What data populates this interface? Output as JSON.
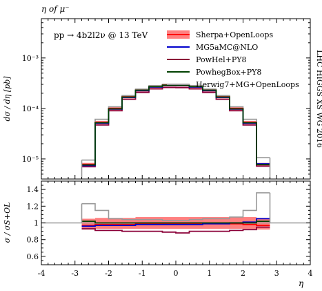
{
  "header": {
    "title": "η of μ⁻"
  },
  "side_label": "LHC HIGGS XS WG 2016",
  "process_label": "pp → 4b2l2ν @ 13 TeV",
  "chart_data": [
    {
      "type": "step",
      "panel": "main",
      "ylabel": "dσ / dη [pb]",
      "yscale": "log",
      "ylim": [
        4e-06,
        0.006
      ],
      "xlim": [
        -4,
        4
      ],
      "yticks": [
        {
          "v": 1e-05,
          "label": "10⁻⁵"
        },
        {
          "v": 0.0001,
          "label": "10⁻⁴"
        },
        {
          "v": 0.001,
          "label": "10⁻³"
        }
      ],
      "bin_edges": [
        -2.8,
        -2.4,
        -2.0,
        -1.6,
        -1.2,
        -0.8,
        -0.4,
        0.0,
        0.4,
        0.8,
        1.2,
        1.6,
        2.0,
        2.4,
        2.8
      ],
      "series": [
        {
          "name": "Sherpa+OpenLoops",
          "color": "#ff0000",
          "band_color": "#ff8080",
          "band_rel": 0.07,
          "values": [
            7.8e-06,
            5.3e-05,
            0.0001,
            0.00017,
            0.00023,
            0.00027,
            0.00029,
            0.00029,
            0.00027,
            0.00023,
            0.00017,
            0.0001,
            5.3e-05,
            7.8e-06
          ]
        },
        {
          "name": "MG5aMC@NLO",
          "color": "#0000cc",
          "values": [
            7.4e-06,
            5.1e-05,
            9.7e-05,
            0.000165,
            0.000225,
            0.000265,
            0.000285,
            0.000285,
            0.000265,
            0.000225,
            0.000165,
            9.7e-05,
            5.1e-05,
            8e-06
          ]
        },
        {
          "name": "PowHel+PY8",
          "color": "#8b0038",
          "values": [
            7e-06,
            4.7e-05,
            9e-05,
            0.000152,
            0.000208,
            0.000244,
            0.00026,
            0.000258,
            0.000244,
            0.000208,
            0.000152,
            9e-05,
            4.7e-05,
            7.2e-06
          ]
        },
        {
          "name": "PowhegBox+PY8",
          "color": "#004000",
          "values": [
            7.6e-06,
            5.2e-05,
            9.8e-05,
            0.000168,
            0.00023,
            0.00027,
            0.000288,
            0.000288,
            0.00027,
            0.00023,
            0.000168,
            9.8e-05,
            5.2e-05,
            7.7e-06
          ]
        },
        {
          "name": "Herwig7+MG+OpenLoops",
          "color": "#999999",
          "values": [
            9.5e-06,
            6.1e-05,
            0.000108,
            0.00018,
            0.000242,
            0.000283,
            0.0003,
            0.0003,
            0.000283,
            0.000242,
            0.00018,
            0.000108,
            6.1e-05,
            1.06e-05
          ]
        }
      ]
    },
    {
      "type": "step",
      "panel": "ratio",
      "ylabel": "σ / σS+OL",
      "xlabel": "η",
      "ylim": [
        0.5,
        1.5
      ],
      "xlim": [
        -4,
        4
      ],
      "xticks": [
        -4,
        -3,
        -2,
        -1,
        0,
        1,
        2,
        3,
        4
      ],
      "yticks": [
        0.6,
        0.8,
        1,
        1.2,
        1.4
      ],
      "bin_edges": [
        -2.8,
        -2.4,
        -2.0,
        -1.6,
        -1.2,
        -0.8,
        -0.4,
        0.0,
        0.4,
        0.8,
        1.2,
        1.6,
        2.0,
        2.4,
        2.8
      ],
      "reference": 1.0,
      "series": [
        {
          "name": "Sherpa+OpenLoops",
          "color": "#ff0000",
          "band_color": "#ff8080",
          "values": [
            0.97,
            0.98,
            0.98,
            0.98,
            0.99,
            0.99,
            0.99,
            0.99,
            0.99,
            0.99,
            0.99,
            0.99,
            0.98,
            0.97
          ],
          "band_low": [
            0.92,
            0.93,
            0.93,
            0.93,
            0.93,
            0.93,
            0.93,
            0.93,
            0.93,
            0.93,
            0.93,
            0.93,
            0.93,
            0.92
          ],
          "band_high": [
            1.05,
            1.06,
            1.06,
            1.06,
            1.07,
            1.07,
            1.07,
            1.07,
            1.07,
            1.07,
            1.07,
            1.07,
            1.07,
            1.06
          ]
        },
        {
          "name": "MG5aMC@NLO",
          "color": "#0000cc",
          "values": [
            0.96,
            0.97,
            0.97,
            0.97,
            0.98,
            0.98,
            0.98,
            0.98,
            0.98,
            0.99,
            0.99,
            1.0,
            1.01,
            1.05
          ]
        },
        {
          "name": "PowHel+PY8",
          "color": "#8b0038",
          "values": [
            0.93,
            0.91,
            0.91,
            0.9,
            0.9,
            0.9,
            0.89,
            0.88,
            0.9,
            0.9,
            0.9,
            0.91,
            0.92,
            0.95
          ]
        },
        {
          "name": "PowhegBox+PY8",
          "color": "#004000",
          "values": [
            1.02,
            1.0,
            1.0,
            1.0,
            1.0,
            1.0,
            1.0,
            1.0,
            1.0,
            1.0,
            1.0,
            1.0,
            1.0,
            1.02
          ]
        },
        {
          "name": "Herwig7+MG+OpenLoops",
          "color": "#999999",
          "values": [
            1.23,
            1.15,
            1.05,
            1.04,
            1.04,
            1.04,
            1.03,
            1.03,
            1.04,
            1.05,
            1.05,
            1.07,
            1.15,
            1.36
          ]
        }
      ]
    }
  ]
}
